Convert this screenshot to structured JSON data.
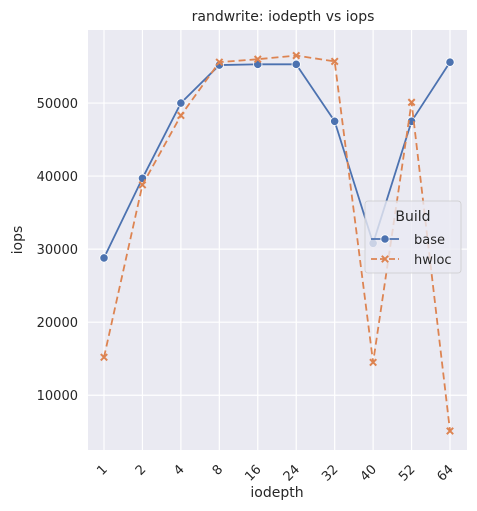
{
  "chart_data": {
    "type": "line",
    "title": "randwrite: iodepth vs iops",
    "xlabel": "iodepth",
    "ylabel": "iops",
    "categories": [
      "1",
      "2",
      "4",
      "8",
      "16",
      "24",
      "32",
      "40",
      "52",
      "64"
    ],
    "yticks": [
      10000,
      20000,
      30000,
      40000,
      50000
    ],
    "ytick_labels": [
      "10000",
      "20000",
      "30000",
      "40000",
      "50000"
    ],
    "ylim": [
      2500,
      60000
    ],
    "grid": true,
    "background": "#eaeaf2",
    "legend": {
      "title": "Build",
      "placement": "right"
    },
    "series": [
      {
        "name": "base",
        "color": "#4c72b0",
        "dash": "solid",
        "marker": "circle",
        "values": [
          28800,
          39700,
          50000,
          55200,
          55300,
          55300,
          47500,
          30800,
          47500,
          55600
        ]
      },
      {
        "name": "hwloc",
        "color": "#dd8452",
        "dash": "dashed",
        "marker": "x",
        "values": [
          15200,
          38800,
          48300,
          55600,
          56000,
          56500,
          55700,
          14500,
          50100,
          5100
        ]
      }
    ]
  }
}
